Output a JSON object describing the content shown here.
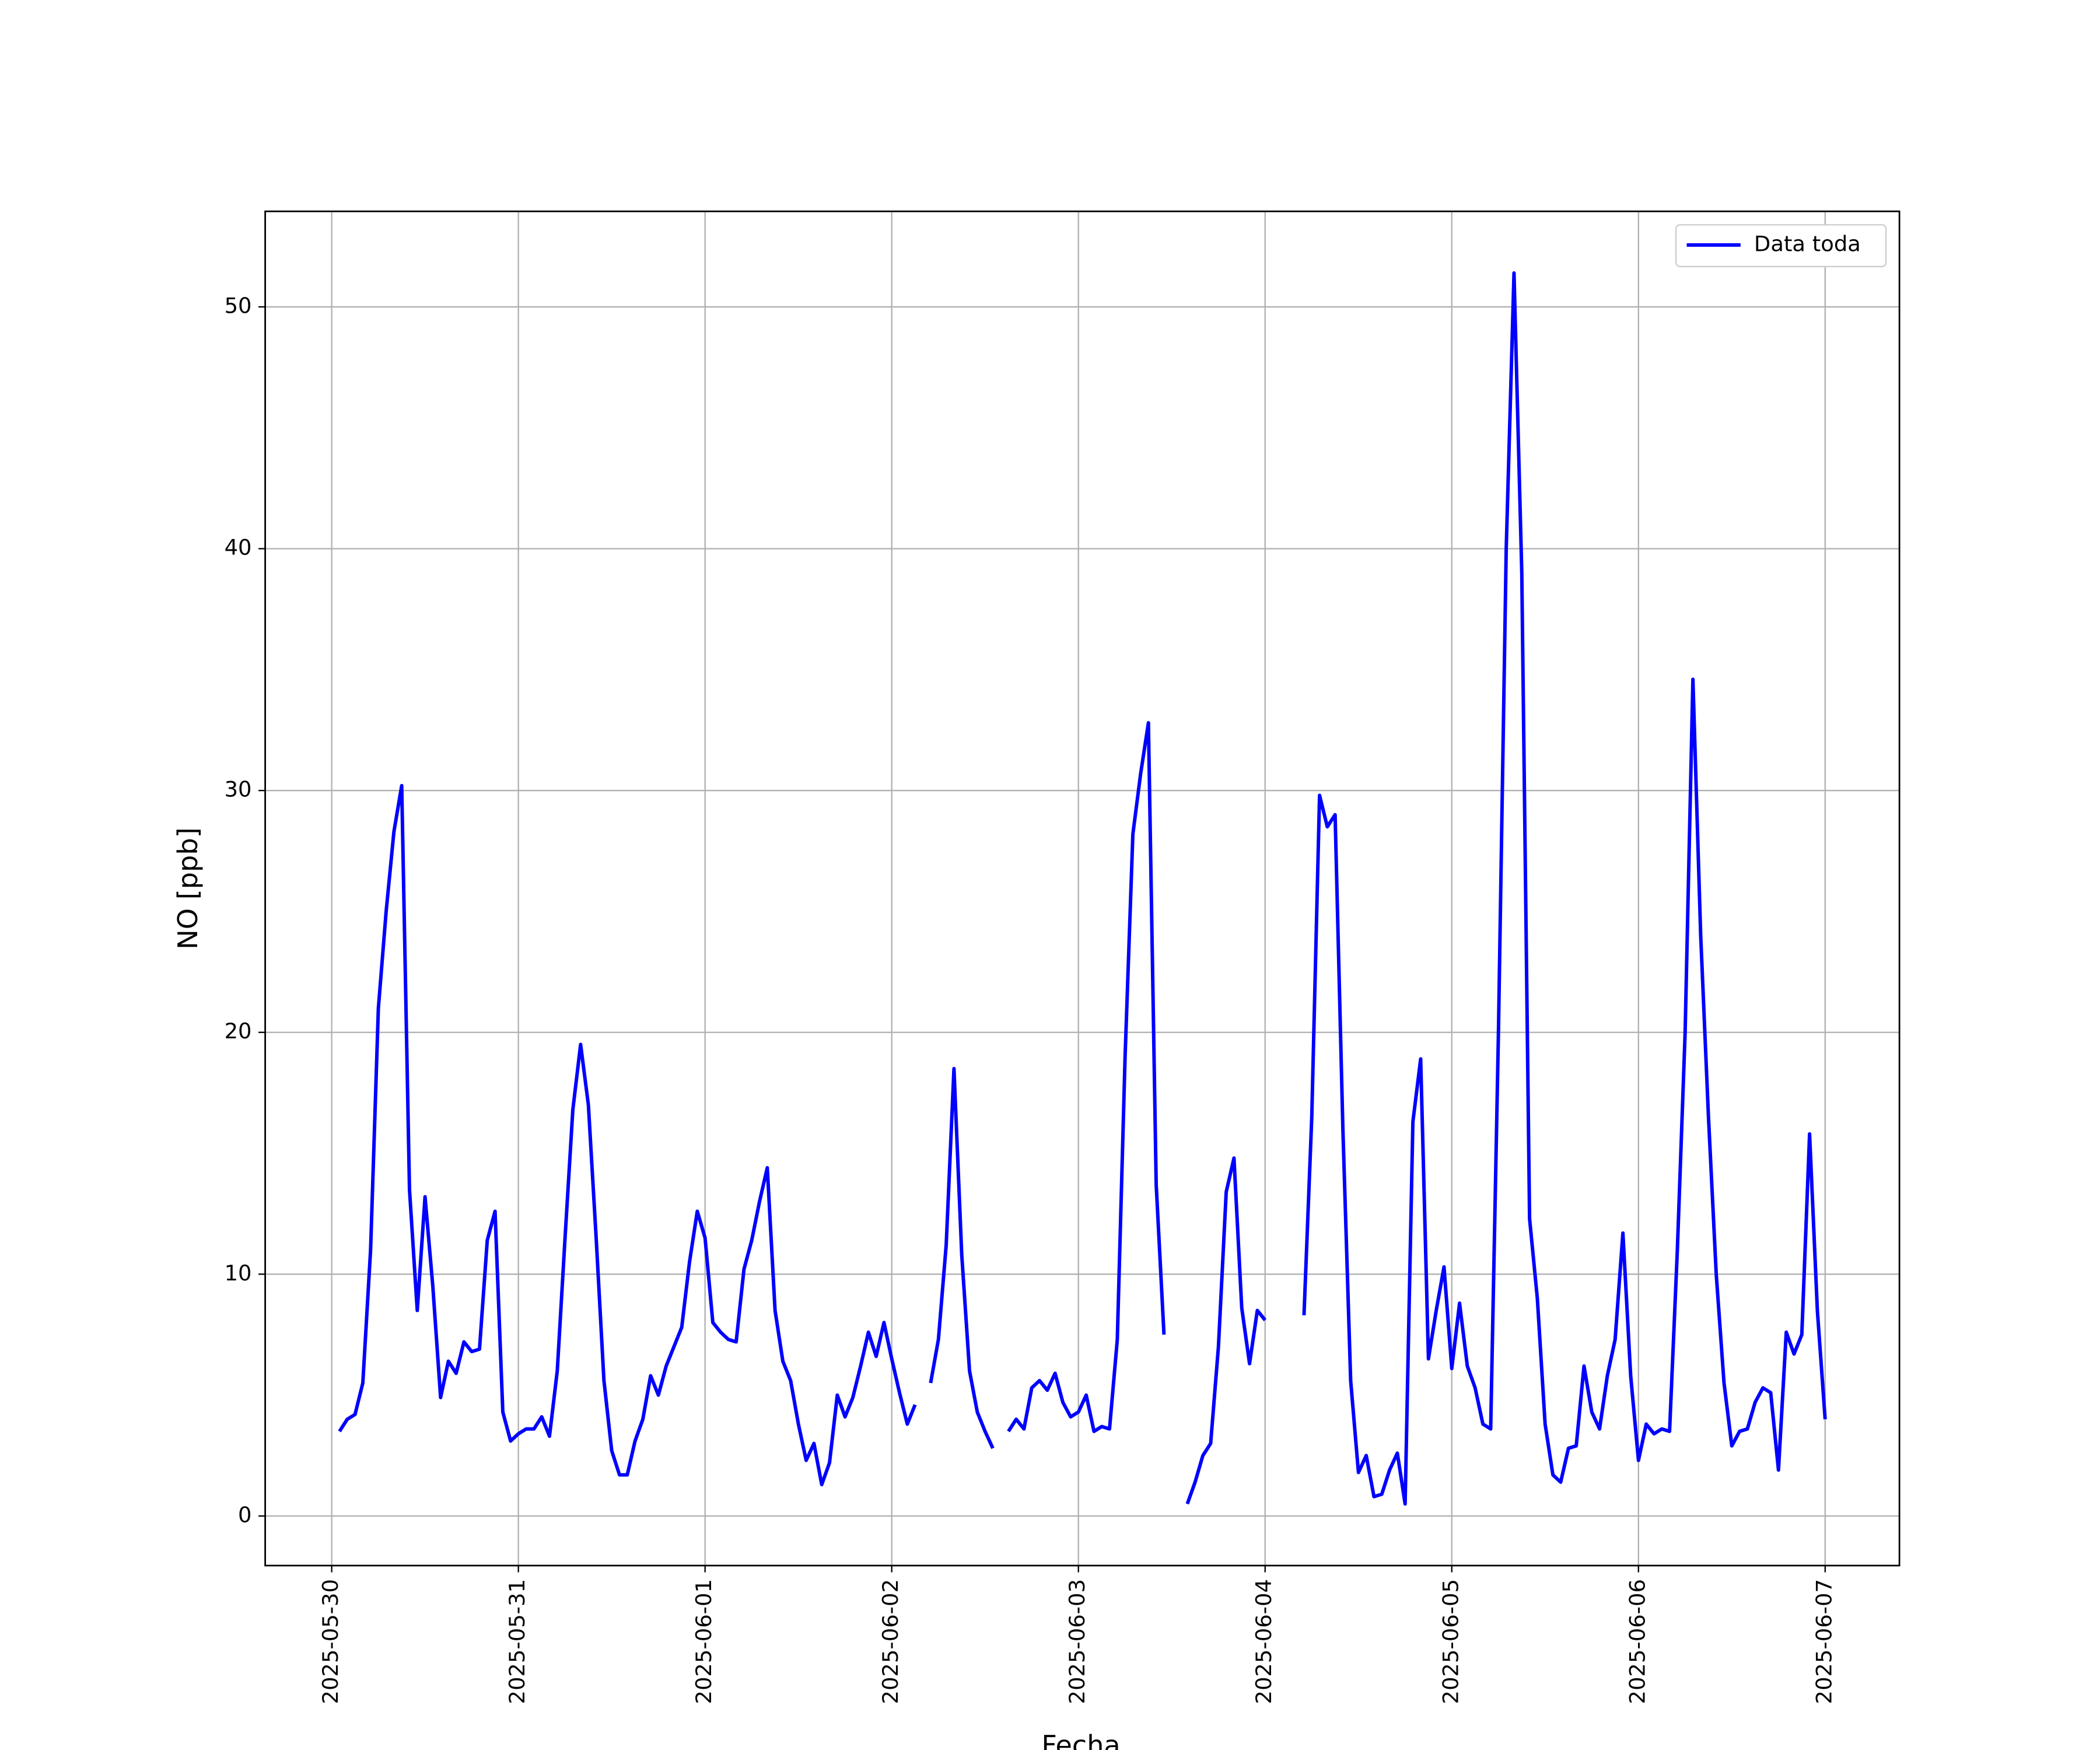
{
  "chart_data": {
    "type": "line",
    "xlabel": "Fecha",
    "ylabel": "NO [ppb]",
    "x": [
      "2025-05-30 01:00",
      "2025-05-30 02:00",
      "2025-05-30 03:00",
      "2025-05-30 04:00",
      "2025-05-30 05:00",
      "2025-05-30 06:00",
      "2025-05-30 07:00",
      "2025-05-30 08:00",
      "2025-05-30 09:00",
      "2025-05-30 10:00",
      "2025-05-30 11:00",
      "2025-05-30 12:00",
      "2025-05-30 13:00",
      "2025-05-30 14:00",
      "2025-05-30 15:00",
      "2025-05-30 16:00",
      "2025-05-30 17:00",
      "2025-05-30 18:00",
      "2025-05-30 19:00",
      "2025-05-30 20:00",
      "2025-05-30 21:00",
      "2025-05-30 22:00",
      "2025-05-30 23:00",
      "2025-05-31 00:00",
      "2025-05-31 01:00",
      "2025-05-31 02:00",
      "2025-05-31 03:00",
      "2025-05-31 04:00",
      "2025-05-31 05:00",
      "2025-05-31 06:00",
      "2025-05-31 07:00",
      "2025-05-31 08:00",
      "2025-05-31 09:00",
      "2025-05-31 10:00",
      "2025-05-31 11:00",
      "2025-05-31 12:00",
      "2025-05-31 13:00",
      "2025-05-31 14:00",
      "2025-05-31 15:00",
      "2025-05-31 16:00",
      "2025-05-31 17:00",
      "2025-05-31 18:00",
      "2025-05-31 19:00",
      "2025-05-31 20:00",
      "2025-05-31 21:00",
      "2025-05-31 22:00",
      "2025-05-31 23:00",
      "2025-06-01 00:00",
      "2025-06-01 01:00",
      "2025-06-01 02:00",
      "2025-06-01 03:00",
      "2025-06-01 04:00",
      "2025-06-01 05:00",
      "2025-06-01 06:00",
      "2025-06-01 07:00",
      "2025-06-01 08:00",
      "2025-06-01 09:00",
      "2025-06-01 10:00",
      "2025-06-01 11:00",
      "2025-06-01 12:00",
      "2025-06-01 13:00",
      "2025-06-01 14:00",
      "2025-06-01 15:00",
      "2025-06-01 16:00",
      "2025-06-01 17:00",
      "2025-06-01 18:00",
      "2025-06-01 19:00",
      "2025-06-01 20:00",
      "2025-06-01 21:00",
      "2025-06-01 22:00",
      "2025-06-01 23:00",
      "2025-06-02 00:00",
      "2025-06-02 01:00",
      "2025-06-02 02:00",
      "2025-06-02 03:00",
      "2025-06-02 04:00",
      "2025-06-02 05:00",
      "2025-06-02 06:00",
      "2025-06-02 07:00",
      "2025-06-02 08:00",
      "2025-06-02 09:00",
      "2025-06-02 10:00",
      "2025-06-02 11:00",
      "2025-06-02 12:00",
      "2025-06-02 13:00",
      "2025-06-02 14:00",
      "2025-06-02 15:00",
      "2025-06-02 16:00",
      "2025-06-02 17:00",
      "2025-06-02 18:00",
      "2025-06-02 19:00",
      "2025-06-02 20:00",
      "2025-06-02 21:00",
      "2025-06-02 22:00",
      "2025-06-02 23:00",
      "2025-06-03 00:00",
      "2025-06-03 01:00",
      "2025-06-03 02:00",
      "2025-06-03 03:00",
      "2025-06-03 04:00",
      "2025-06-03 05:00",
      "2025-06-03 06:00",
      "2025-06-03 07:00",
      "2025-06-03 08:00",
      "2025-06-03 09:00",
      "2025-06-03 10:00",
      "2025-06-03 11:00",
      "2025-06-03 12:00",
      "2025-06-03 13:00",
      "2025-06-03 14:00",
      "2025-06-03 15:00",
      "2025-06-03 16:00",
      "2025-06-03 17:00",
      "2025-06-03 18:00",
      "2025-06-03 19:00",
      "2025-06-03 20:00",
      "2025-06-03 21:00",
      "2025-06-03 22:00",
      "2025-06-03 23:00",
      "2025-06-04 00:00",
      "2025-06-04 01:00",
      "2025-06-04 02:00",
      "2025-06-04 03:00",
      "2025-06-04 04:00",
      "2025-06-04 05:00",
      "2025-06-04 06:00",
      "2025-06-04 07:00",
      "2025-06-04 08:00",
      "2025-06-04 09:00",
      "2025-06-04 10:00",
      "2025-06-04 11:00",
      "2025-06-04 12:00",
      "2025-06-04 13:00",
      "2025-06-04 14:00",
      "2025-06-04 15:00",
      "2025-06-04 16:00",
      "2025-06-04 17:00",
      "2025-06-04 18:00",
      "2025-06-04 19:00",
      "2025-06-04 20:00",
      "2025-06-04 21:00",
      "2025-06-04 22:00",
      "2025-06-04 23:00",
      "2025-06-05 00:00",
      "2025-06-05 01:00",
      "2025-06-05 02:00",
      "2025-06-05 03:00",
      "2025-06-05 04:00",
      "2025-06-05 05:00",
      "2025-06-05 06:00",
      "2025-06-05 07:00",
      "2025-06-05 08:00",
      "2025-06-05 09:00",
      "2025-06-05 10:00",
      "2025-06-05 11:00",
      "2025-06-05 12:00",
      "2025-06-05 13:00",
      "2025-06-05 14:00",
      "2025-06-05 15:00",
      "2025-06-05 16:00",
      "2025-06-05 17:00",
      "2025-06-05 18:00",
      "2025-06-05 19:00",
      "2025-06-05 20:00",
      "2025-06-05 21:00",
      "2025-06-05 22:00",
      "2025-06-05 23:00",
      "2025-06-06 00:00",
      "2025-06-06 01:00",
      "2025-06-06 02:00",
      "2025-06-06 03:00",
      "2025-06-06 04:00",
      "2025-06-06 05:00",
      "2025-06-06 06:00",
      "2025-06-06 07:00",
      "2025-06-06 08:00",
      "2025-06-06 09:00",
      "2025-06-06 10:00",
      "2025-06-06 11:00",
      "2025-06-06 12:00",
      "2025-06-06 13:00",
      "2025-06-06 14:00",
      "2025-06-06 15:00",
      "2025-06-06 16:00",
      "2025-06-06 17:00",
      "2025-06-06 18:00",
      "2025-06-06 19:00",
      "2025-06-06 20:00",
      "2025-06-06 21:00",
      "2025-06-06 22:00",
      "2025-06-06 23:00",
      "2025-06-07 00:00"
    ],
    "series": [
      {
        "name": "Data toda",
        "color": "#0000ff",
        "values": [
          3.5,
          4.0,
          4.2,
          5.5,
          11,
          21,
          25,
          28.3,
          30.2,
          13.5,
          8.5,
          13.2,
          9.5,
          4.9,
          6.4,
          5.9,
          7.2,
          6.8,
          6.9,
          11.4,
          12.6,
          4.3,
          3.1,
          3.4,
          3.6,
          3.6,
          4.1,
          3.3,
          6.0,
          11.5,
          16.8,
          19.5,
          17,
          11.5,
          5.6,
          2.7,
          1.7,
          1.7,
          3.1,
          4.0,
          5.8,
          5.0,
          6.2,
          7.0,
          7.8,
          10.5,
          12.6,
          11.5,
          8.0,
          7.6,
          7.3,
          7.2,
          10.2,
          11.4,
          13.0,
          14.4,
          8.5,
          6.4,
          5.6,
          3.8,
          2.3,
          3.0,
          1.3,
          2.2,
          5.0,
          4.1,
          4.9,
          6.2,
          7.6,
          6.6,
          8.0,
          6.5,
          5.1,
          3.8,
          4.6,
          null,
          5.5,
          7.3,
          11.2,
          18.5,
          10.8,
          6.0,
          4.3,
          3.5,
          2.8,
          null,
          3.5,
          4.0,
          3.6,
          5.3,
          5.6,
          5.2,
          5.9,
          4.7,
          4.1,
          4.3,
          5.0,
          3.5,
          3.7,
          3.6,
          7.3,
          19,
          28.2,
          30.7,
          32.8,
          13.7,
          7.5,
          null,
          null,
          0.5,
          1.4,
          2.5,
          3.0,
          7.0,
          13.4,
          14.8,
          8.6,
          6.3,
          8.5,
          8.1,
          null,
          null,
          null,
          null,
          8.3,
          16.5,
          29.8,
          28.5,
          29.0,
          16,
          5.6,
          1.8,
          2.5,
          0.8,
          0.9,
          1.9,
          2.6,
          0.5,
          16.3,
          18.9,
          6.5,
          8.5,
          10.3,
          6.1,
          8.8,
          6.2,
          5.3,
          3.8,
          3.6,
          20,
          40,
          51.4,
          39,
          12.3,
          9.0,
          3.8,
          1.7,
          1.4,
          2.8,
          2.9,
          6.2,
          4.3,
          3.6,
          5.8,
          7.3,
          11.7,
          5.8,
          2.3,
          3.8,
          3.4,
          3.6,
          3.5,
          11,
          20,
          34.6,
          24,
          16.5,
          10,
          5.5,
          2.9,
          3.5,
          3.6,
          4.7,
          5.3,
          5.1,
          1.9,
          7.6,
          6.7,
          7.5,
          15.8,
          8.5,
          4.0
        ]
      }
    ],
    "xlim": [
      "2025-05-29 15:27",
      "2025-06-07 09:33"
    ],
    "xticks": [
      "2025-05-30",
      "2025-05-31",
      "2025-06-01",
      "2025-06-02",
      "2025-06-03",
      "2025-06-04",
      "2025-06-05",
      "2025-06-06",
      "2025-06-07"
    ],
    "ylim": [
      -2.05,
      53.95
    ],
    "yticks": [
      0,
      10,
      20,
      30,
      40,
      50
    ],
    "grid": true,
    "legend": "upper right"
  }
}
